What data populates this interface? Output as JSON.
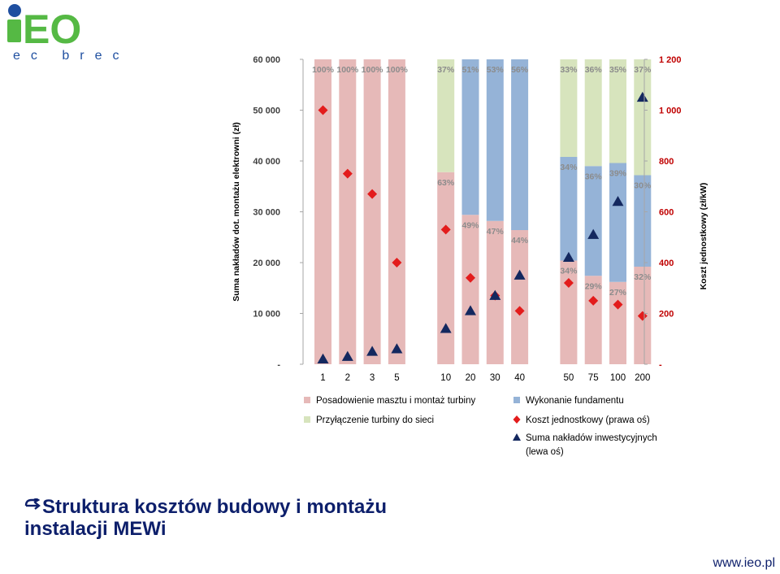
{
  "logo": {
    "text": "iEO",
    "subtitle": "ec brec",
    "colors": {
      "green": "#55b944",
      "blue": "#1f4fa0"
    }
  },
  "chart_data": {
    "type": "bar",
    "stacked": true,
    "categories": [
      "1",
      "2",
      "3",
      "5",
      "10",
      "20",
      "30",
      "40",
      "50",
      "75",
      "100",
      "200"
    ],
    "groups": [
      [
        0,
        1,
        2,
        3
      ],
      [
        4,
        5,
        6,
        7
      ],
      [
        8,
        9,
        10,
        11
      ]
    ],
    "series": [
      {
        "name": "Posadowienie masztu i montaż turbiny",
        "values": [
          100,
          100,
          100,
          100,
          63,
          49,
          47,
          44,
          34,
          29,
          27,
          32
        ],
        "labels": [
          "100%",
          "100%",
          "100%",
          "100%",
          "63%",
          "49%",
          "47%",
          "44%",
          "34%",
          "29%",
          "27%",
          "32%"
        ],
        "color": "#e6b9b8"
      },
      {
        "name": "Wykonanie fundamentu",
        "values": [
          0,
          0,
          0,
          0,
          0,
          51,
          53,
          56,
          34,
          36,
          39,
          30
        ],
        "labels": [
          "",
          "",
          "",
          "",
          "",
          "51%",
          "53%",
          "56%",
          "34%",
          "36%",
          "39%",
          "30%"
        ],
        "color": "#95b3d7"
      },
      {
        "name": "Przyłączenie turbiny do sieci",
        "values": [
          0,
          0,
          0,
          0,
          37,
          0,
          0,
          0,
          33,
          36,
          35,
          37
        ],
        "labels": [
          "",
          "",
          "",
          "",
          "37%",
          "",
          "",
          "",
          "33%",
          "36%",
          "35%",
          "37%"
        ],
        "color": "#d7e4bd"
      }
    ],
    "bar_segment_order": [
      [
        "Posadowienie masztu i montaż turbiny"
      ],
      [
        "Posadowienie masztu i montaż turbiny"
      ],
      [
        "Posadowienie masztu i montaż turbiny"
      ],
      [
        "Posadowienie masztu i montaż turbiny"
      ],
      [
        "Posadowienie masztu i montaż turbiny",
        "Przyłączenie turbiny do sieci"
      ],
      [
        "Posadowienie masztu i montaż turbiny",
        "Wykonanie fundamentu"
      ],
      [
        "Posadowienie masztu i montaż turbiny",
        "Wykonanie fundamentu"
      ],
      [
        "Posadowienie masztu i montaż turbiny",
        "Wykonanie fundamentu"
      ],
      [
        "Posadowienie masztu i montaż turbiny",
        "Wykonanie fundamentu",
        "Przyłączenie turbiny do sieci"
      ],
      [
        "Posadowienie masztu i montaż turbiny",
        "Wykonanie fundamentu",
        "Przyłączenie turbiny do sieci"
      ],
      [
        "Posadowienie masztu i montaż turbiny",
        "Wykonanie fundamentu",
        "Przyłączenie turbiny do sieci"
      ],
      [
        "Posadowienie masztu i montaż turbiny",
        "Wykonanie fundamentu",
        "Przyłączenie turbiny do sieci"
      ]
    ],
    "unit_cost": {
      "name": "Koszt jednostkowy (prawa oś)",
      "axis": "right",
      "values": [
        1000,
        750,
        670,
        400,
        530,
        340,
        270,
        210,
        320,
        250,
        235,
        190
      ],
      "color": "#e31c1c",
      "marker": "diamond"
    },
    "total_investment": {
      "name": "Suma nakładów inwestycyjnych (lewa oś)",
      "axis": "left",
      "values": [
        1000,
        1500,
        2500,
        3000,
        7000,
        10500,
        13500,
        17500,
        21000,
        25500,
        32000,
        52500
      ],
      "color": "#14285f",
      "marker": "triangle"
    },
    "left_axis": {
      "label": "Suma nakładów dot. montażu elektrowni (zł)",
      "min": 0,
      "max": 60000,
      "ticks": [
        "-",
        "10 000",
        "20 000",
        "30 000",
        "40 000",
        "50 000",
        "60 000"
      ]
    },
    "right_axis": {
      "label": "Koszt jednostkowy (zł/kW)",
      "min": 0,
      "max": 1200,
      "ticks": [
        "-",
        "200",
        "400",
        "600",
        "800",
        "1 000",
        "1 200"
      ],
      "color": "#c00000"
    },
    "legend": {
      "placement": "bottom",
      "items": [
        {
          "label": "Posadowienie masztu i montaż turbiny",
          "kind": "square",
          "color": "#e6b9b8"
        },
        {
          "label": "Wykonanie fundamentu",
          "kind": "square",
          "color": "#95b3d7"
        },
        {
          "label": "Przyłączenie turbiny do sieci",
          "kind": "square",
          "color": "#d7e4bd"
        },
        {
          "label": "Koszt jednostkowy (prawa oś)",
          "kind": "diamond",
          "color": "#e31c1c"
        },
        {
          "label": "Suma nakładów inwestycyjnych",
          "label2": "(lewa oś)",
          "kind": "triangle",
          "color": "#14285f"
        }
      ]
    },
    "grid": false
  },
  "caption": {
    "bullet": "arrow-bullet-icon",
    "line1": "Struktura kosztów budowy i montażu",
    "line2": "instalacji MEWi"
  },
  "footer": {
    "url": "www.ieo.pl"
  }
}
